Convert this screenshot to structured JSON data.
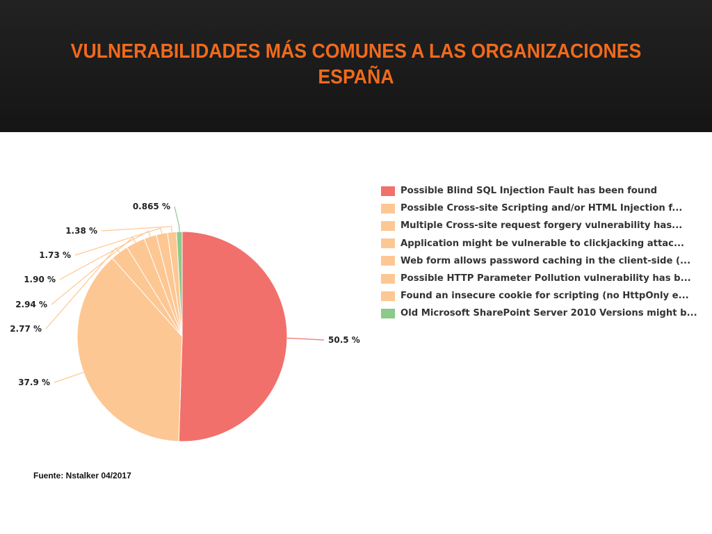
{
  "header": {
    "title_line1": "VULNERABILIDADES MÁS COMUNES A LAS ORGANIZACIONES",
    "title_line2": "ESPAÑA",
    "title_color": "#f06a1c",
    "background_color": "#1d1d1d"
  },
  "chart_data": {
    "type": "pie",
    "legend_position": "right",
    "slices": [
      {
        "label": "Possible Blind SQL Injection Fault has been found",
        "value": 50.5,
        "value_label": "50.5 %",
        "color": "#f2706b"
      },
      {
        "label": "Possible Cross-site Scripting and/or HTML Injection f...",
        "value": 37.9,
        "value_label": "37.9 %",
        "color": "#fdc793"
      },
      {
        "label": "Multiple Cross-site request forgery vulnerability has...",
        "value": 2.77,
        "value_label": "2.77 %",
        "color": "#fdc793"
      },
      {
        "label": "Application might be vulnerable to clickjacking attac...",
        "value": 2.94,
        "value_label": "2.94 %",
        "color": "#fdc793"
      },
      {
        "label": "Web form allows password caching in the client-side (...",
        "value": 1.9,
        "value_label": "1.90 %",
        "color": "#fdc793"
      },
      {
        "label": "Possible HTTP Parameter Pollution vulnerability has b...",
        "value": 1.73,
        "value_label": "1.73 %",
        "color": "#fdc793"
      },
      {
        "label": "Found an insecure cookie for scripting (no HttpOnly e...",
        "value": 1.38,
        "value_label": "1.38 %",
        "color": "#fdc793"
      },
      {
        "label": "Old Microsoft SharePoint Server 2010 Versions might b...",
        "value": 0.865,
        "value_label": "0.865 %",
        "color": "#8cc98a"
      }
    ]
  },
  "source": "Fuente: Nstalker 04/2017"
}
